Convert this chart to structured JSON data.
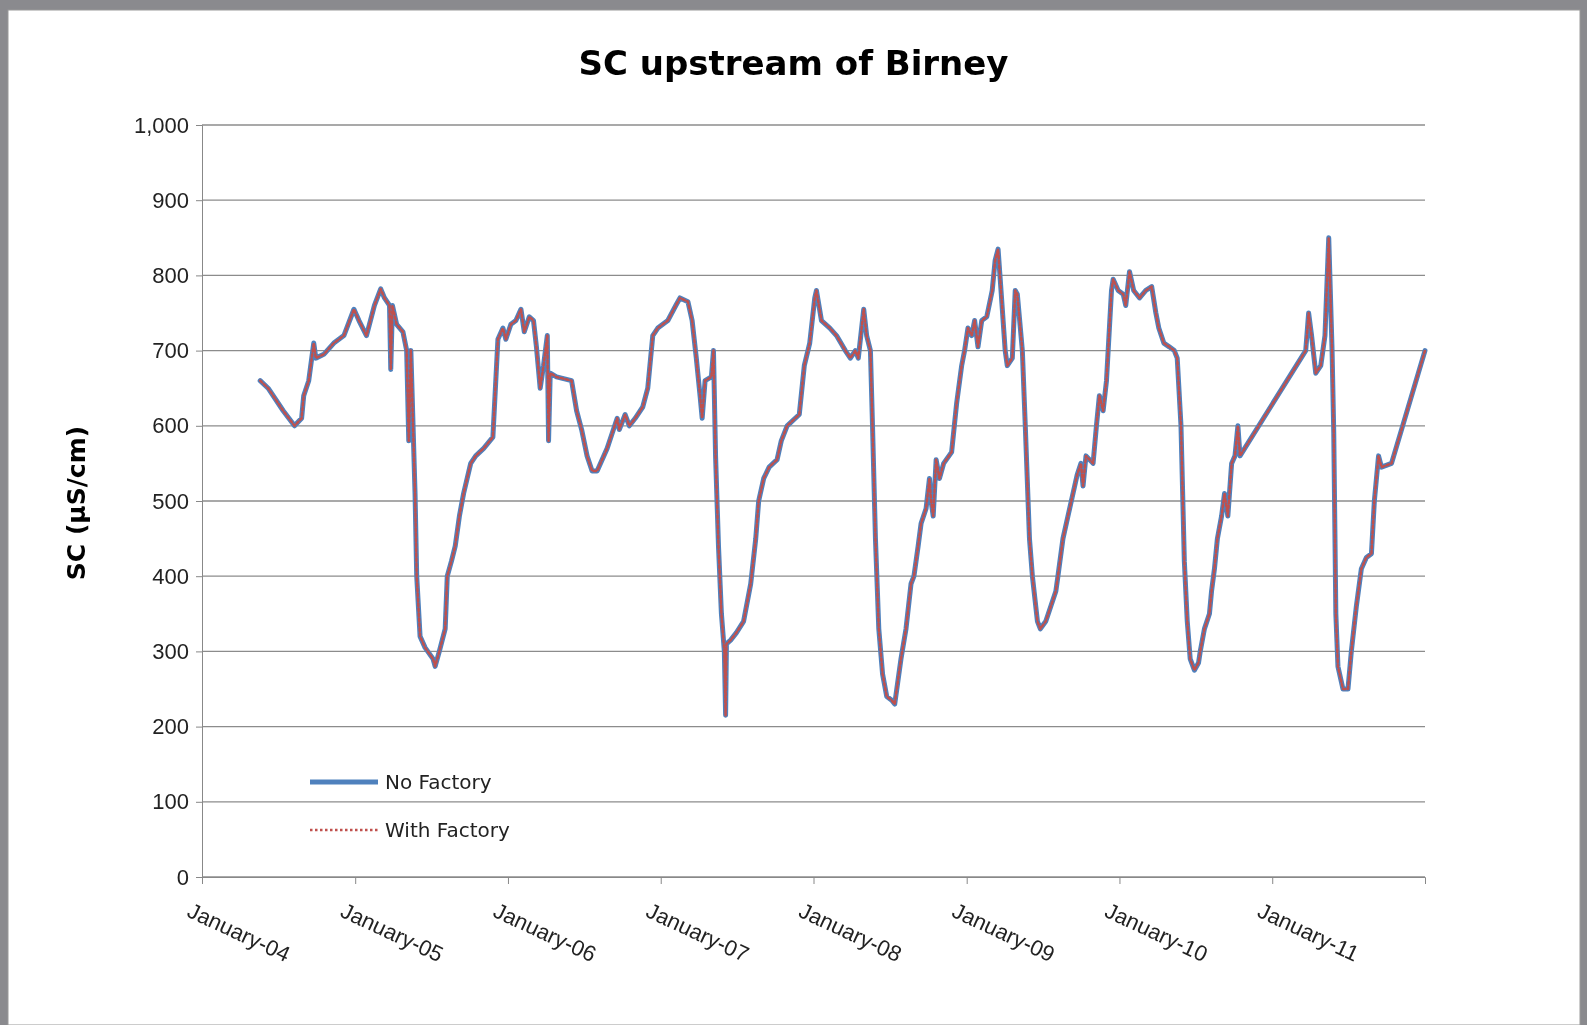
{
  "chart_data": {
    "type": "line",
    "title": "SC upstream of Birney",
    "ylabel": "SC (µS/cm)",
    "x": [
      "2004-05-19",
      "2004-06-07",
      "2004-07-13",
      "2004-08-09",
      "2004-08-26",
      "2004-08-31",
      "2004-09-12",
      "2004-09-24",
      "2004-09-29",
      "2004-10-18",
      "2004-11-11",
      "2004-12-05",
      "2004-12-29",
      "2005-01-10",
      "2005-01-28",
      "2005-02-16",
      "2005-03-03",
      "2005-03-12",
      "2005-03-24",
      "2005-03-27",
      "2005-03-31",
      "2005-04-10",
      "2005-04-25",
      "2005-05-04",
      "2005-05-09",
      "2005-05-14",
      "2005-05-24",
      "2005-05-28",
      "2005-06-05",
      "2005-06-17",
      "2005-07-06",
      "2005-07-11",
      "2005-07-21",
      "2005-08-04",
      "2005-08-09",
      "2005-08-19",
      "2005-08-28",
      "2005-09-07",
      "2005-09-17",
      "2005-10-04",
      "2005-10-16",
      "2005-11-04",
      "2005-11-26",
      "2005-12-08",
      "2005-12-20",
      "2005-12-27",
      "2006-01-08",
      "2006-01-20",
      "2006-02-01",
      "2006-02-09",
      "2006-02-21",
      "2006-03-03",
      "2006-03-10",
      "2006-03-19",
      "2006-03-27",
      "2006-04-05",
      "2006-04-08",
      "2006-04-12",
      "2006-04-27",
      "2006-06-02",
      "2006-06-14",
      "2006-06-26",
      "2006-07-09",
      "2006-07-21",
      "2006-08-02",
      "2006-08-26",
      "2006-09-07",
      "2006-09-19",
      "2006-09-24",
      "2006-10-08",
      "2006-10-18",
      "2006-11-01",
      "2006-11-19",
      "2006-12-01",
      "2006-12-13",
      "2006-12-25",
      "2007-01-18",
      "2007-02-06",
      "2007-02-16",
      "2007-03-07",
      "2007-03-17",
      "2007-03-27",
      "2007-04-05",
      "2007-04-10",
      "2007-04-17",
      "2007-05-02",
      "2007-05-07",
      "2007-05-12",
      "2007-05-19",
      "2007-05-26",
      "2007-06-02",
      "2007-06-05",
      "2007-06-07",
      "2007-06-17",
      "2007-07-01",
      "2007-07-18",
      "2007-08-04",
      "2007-08-16",
      "2007-08-23",
      "2007-09-04",
      "2007-09-17",
      "2007-10-06",
      "2007-10-16",
      "2007-10-30",
      "2007-11-28",
      "2007-12-10",
      "2007-12-23",
      "2008-01-04",
      "2008-01-08",
      "2008-01-20",
      "2008-02-09",
      "2008-02-25",
      "2008-03-17",
      "2008-03-29",
      "2008-04-10",
      "2008-04-17",
      "2008-04-30",
      "2008-05-07",
      "2008-05-16",
      "2008-05-21",
      "2008-05-28",
      "2008-06-05",
      "2008-06-14",
      "2008-06-24",
      "2008-07-06",
      "2008-07-13",
      "2008-07-28",
      "2008-08-09",
      "2008-08-21",
      "2008-08-28",
      "2008-09-07",
      "2008-09-14",
      "2008-09-26",
      "2008-10-04",
      "2008-10-08",
      "2008-10-13",
      "2008-10-20",
      "2008-10-28",
      "2008-11-07",
      "2008-11-26",
      "2008-12-08",
      "2008-12-20",
      "2008-12-27",
      "2009-01-04",
      "2009-01-13",
      "2009-01-20",
      "2009-01-28",
      "2009-02-06",
      "2009-02-18",
      "2009-03-03",
      "2009-03-10",
      "2009-03-17",
      "2009-03-24",
      "2009-04-03",
      "2009-04-08",
      "2009-04-20",
      "2009-04-27",
      "2009-05-02",
      "2009-05-14",
      "2009-05-21",
      "2009-05-31",
      "2009-06-07",
      "2009-06-19",
      "2009-06-26",
      "2009-07-09",
      "2009-07-21",
      "2009-08-02",
      "2009-08-07",
      "2009-08-19",
      "2009-08-31",
      "2009-09-12",
      "2009-09-22",
      "2009-10-01",
      "2009-10-06",
      "2009-10-13",
      "2009-10-30",
      "2009-11-07",
      "2009-11-14",
      "2009-11-23",
      "2009-12-01",
      "2009-12-13",
      "2009-12-17",
      "2009-12-29",
      "2010-01-10",
      "2010-01-16",
      "2010-01-25",
      "2010-02-04",
      "2010-02-18",
      "2010-03-05",
      "2010-03-19",
      "2010-03-29",
      "2010-04-05",
      "2010-04-17",
      "2010-04-30",
      "2010-05-12",
      "2010-05-19",
      "2010-05-28",
      "2010-06-05",
      "2010-06-12",
      "2010-06-19",
      "2010-06-29",
      "2010-07-09",
      "2010-07-13",
      "2010-07-23",
      "2010-08-04",
      "2010-08-09",
      "2010-08-16",
      "2010-08-23",
      "2010-09-02",
      "2010-09-09",
      "2010-09-17",
      "2010-09-26",
      "2010-10-04",
      "2010-10-11",
      "2010-10-16",
      "2011-03-22",
      "2011-03-29",
      "2011-04-05",
      "2011-04-15",
      "2011-04-27",
      "2011-05-07",
      "2011-05-16",
      "2011-05-24",
      "2011-05-28",
      "2011-06-02",
      "2011-06-07",
      "2011-06-19",
      "2011-07-01",
      "2011-07-09",
      "2011-07-21",
      "2011-08-02",
      "2011-08-14",
      "2011-08-26",
      "2011-09-02",
      "2011-09-12",
      "2011-09-19",
      "2011-10-13",
      "2012-01-01"
    ],
    "series": [
      {
        "name": "No Factory",
        "color": "#4f81bd",
        "line_style": "solid",
        "values": [
          660,
          650,
          620,
          600,
          610,
          640,
          660,
          710,
          690,
          695,
          710,
          720,
          755,
          740,
          720,
          760,
          782,
          770,
          760,
          675,
          760,
          735,
          725,
          700,
          580,
          700,
          510,
          400,
          320,
          305,
          290,
          280,
          300,
          330,
          400,
          420,
          440,
          480,
          510,
          550,
          560,
          570,
          585,
          715,
          730,
          715,
          735,
          740,
          755,
          725,
          745,
          740,
          705,
          650,
          680,
          720,
          580,
          670,
          665,
          660,
          620,
          595,
          560,
          540,
          540,
          570,
          590,
          610,
          595,
          615,
          600,
          610,
          625,
          650,
          720,
          730,
          740,
          760,
          770,
          765,
          740,
          690,
          640,
          610,
          660,
          665,
          700,
          560,
          440,
          350,
          300,
          215,
          310,
          315,
          325,
          340,
          390,
          450,
          500,
          530,
          545,
          555,
          580,
          600,
          615,
          680,
          710,
          770,
          780,
          740,
          730,
          720,
          700,
          690,
          700,
          690,
          755,
          720,
          700,
          600,
          450,
          330,
          270,
          240,
          235,
          230,
          290,
          330,
          390,
          400,
          440,
          470,
          490,
          530,
          500,
          480,
          555,
          530,
          550,
          565,
          630,
          680,
          700,
          730,
          720,
          740,
          705,
          740,
          745,
          780,
          820,
          835,
          780,
          700,
          680,
          690,
          780,
          775,
          700,
          600,
          450,
          400,
          340,
          330,
          340,
          360,
          380,
          400,
          450,
          480,
          510,
          535,
          550,
          520,
          560,
          550,
          600,
          640,
          620,
          660,
          780,
          795,
          780,
          775,
          760,
          805,
          780,
          770,
          780,
          785,
          750,
          730,
          710,
          705,
          700,
          690,
          600,
          420,
          340,
          290,
          275,
          285,
          300,
          330,
          350,
          380,
          410,
          450,
          480,
          510,
          480,
          550,
          560,
          600,
          560,
          700,
          750,
          720,
          670,
          680,
          720,
          850,
          700,
          590,
          350,
          280,
          250,
          250,
          300,
          360,
          410,
          425,
          430,
          500,
          560,
          545,
          550,
          700
        ]
      },
      {
        "name": "With Factory",
        "color": "#c0504d",
        "line_style": "dotted",
        "values": [
          660,
          650,
          620,
          600,
          610,
          640,
          660,
          710,
          690,
          695,
          710,
          720,
          755,
          740,
          720,
          760,
          782,
          770,
          760,
          675,
          760,
          735,
          725,
          700,
          580,
          700,
          510,
          400,
          320,
          305,
          290,
          280,
          300,
          330,
          400,
          420,
          440,
          480,
          510,
          550,
          560,
          570,
          585,
          715,
          730,
          715,
          735,
          740,
          755,
          725,
          745,
          740,
          705,
          650,
          680,
          720,
          580,
          670,
          665,
          660,
          620,
          595,
          560,
          540,
          540,
          570,
          590,
          610,
          595,
          615,
          600,
          610,
          625,
          650,
          720,
          730,
          740,
          760,
          770,
          765,
          740,
          690,
          640,
          610,
          660,
          665,
          700,
          560,
          440,
          350,
          300,
          215,
          310,
          315,
          325,
          340,
          390,
          450,
          500,
          530,
          545,
          555,
          580,
          600,
          615,
          680,
          710,
          770,
          780,
          740,
          730,
          720,
          700,
          690,
          700,
          690,
          755,
          720,
          700,
          600,
          450,
          330,
          270,
          240,
          235,
          230,
          290,
          330,
          390,
          400,
          440,
          470,
          490,
          530,
          500,
          480,
          555,
          530,
          550,
          565,
          630,
          680,
          700,
          730,
          720,
          740,
          705,
          740,
          745,
          780,
          820,
          835,
          780,
          700,
          680,
          690,
          780,
          775,
          700,
          600,
          450,
          400,
          340,
          330,
          340,
          360,
          380,
          400,
          450,
          480,
          510,
          535,
          550,
          520,
          560,
          550,
          600,
          640,
          620,
          660,
          780,
          795,
          780,
          775,
          760,
          805,
          780,
          770,
          780,
          785,
          750,
          730,
          710,
          705,
          700,
          690,
          600,
          420,
          340,
          290,
          275,
          285,
          300,
          330,
          350,
          380,
          410,
          450,
          480,
          510,
          480,
          550,
          560,
          600,
          560,
          700,
          750,
          720,
          670,
          680,
          720,
          850,
          700,
          590,
          350,
          280,
          250,
          250,
          300,
          360,
          410,
          425,
          430,
          500,
          560,
          545,
          550,
          700
        ]
      }
    ],
    "xlim": [
      "2004-01-01",
      "2012-01-01"
    ],
    "xticks": [
      {
        "value": "2004-01-01",
        "label": "January-04"
      },
      {
        "value": "2005-01-01",
        "label": "January-05"
      },
      {
        "value": "2006-01-01",
        "label": "January-06"
      },
      {
        "value": "2007-01-01",
        "label": "January-07"
      },
      {
        "value": "2008-01-01",
        "label": "January-08"
      },
      {
        "value": "2009-01-01",
        "label": "January-09"
      },
      {
        "value": "2010-01-01",
        "label": "January-10"
      },
      {
        "value": "2011-01-01",
        "label": "January-11"
      }
    ],
    "ylim": [
      0,
      1000
    ],
    "yticks": [
      0,
      100,
      200,
      300,
      400,
      500,
      600,
      700,
      800,
      900,
      {
        "value": 1000,
        "label": "1,000"
      }
    ],
    "grid": "y",
    "legend": "bottom left"
  }
}
